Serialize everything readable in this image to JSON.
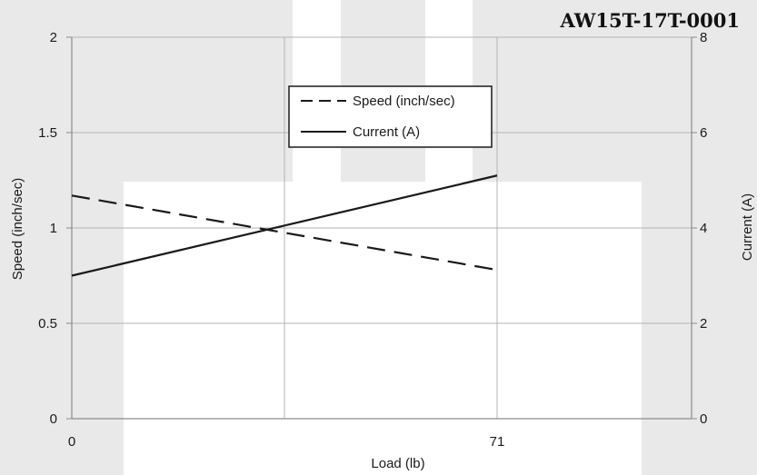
{
  "chart_data": {
    "type": "line",
    "title": "AW15T-17T-0001",
    "xlabel": "Load (lb)",
    "ylabel": "Speed (inch/sec)",
    "y2label": "Current (A)",
    "x_ticks": [
      "0",
      "71"
    ],
    "xlim": [
      0,
      71
    ],
    "ylim": [
      0,
      2
    ],
    "y_ticks": [
      "0",
      "0.5",
      "1",
      "1.5",
      "2"
    ],
    "y2lim": [
      0,
      8
    ],
    "y2_ticks": [
      "0",
      "2",
      "4",
      "6",
      "8"
    ],
    "grid": true,
    "legend_position": "top-center",
    "series": [
      {
        "name": "Speed (inch/sec)",
        "axis": "left",
        "style": "dashed",
        "color": "#1a1a1a",
        "x": [
          0,
          71
        ],
        "y": [
          1.17,
          0.78
        ]
      },
      {
        "name": "Current (A)",
        "axis": "right",
        "style": "solid",
        "color": "#1a1a1a",
        "x": [
          0,
          71
        ],
        "y": [
          3.0,
          5.1
        ]
      }
    ]
  }
}
